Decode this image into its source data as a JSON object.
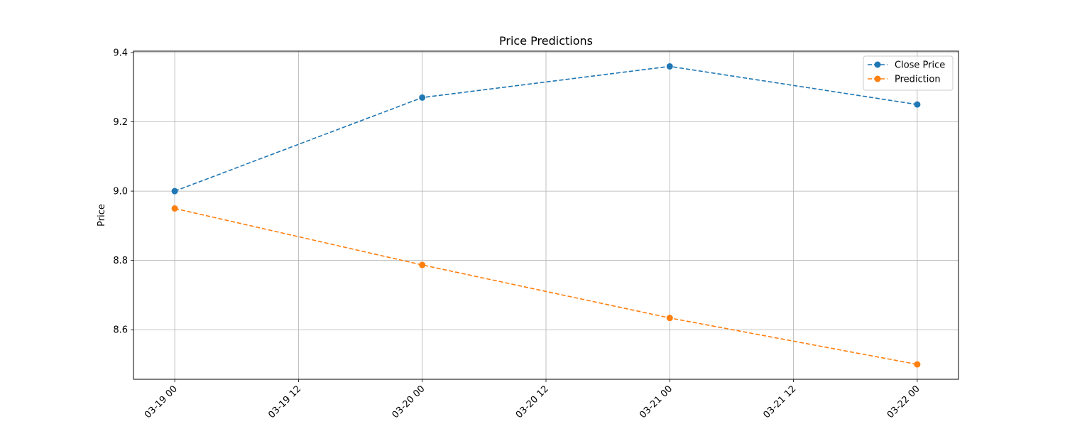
{
  "chart_data": {
    "type": "line",
    "title": "Price Predictions",
    "xlabel": "",
    "ylabel": "Price",
    "x": [
      "03-19 00",
      "03-20 00",
      "03-21 00",
      "03-22 00"
    ],
    "x_ticks": [
      "03-19 00",
      "03-19 12",
      "03-20 00",
      "03-20 12",
      "03-21 00",
      "03-21 12",
      "03-22 00"
    ],
    "y_ticks": [
      8.6,
      8.8,
      9.0,
      9.2,
      9.4
    ],
    "xlim": [
      "03-18 20",
      "03-22 04"
    ],
    "ylim": [
      8.457,
      9.404
    ],
    "grid": true,
    "legend_position": "top-right",
    "series": [
      {
        "name": "Close Price",
        "color": "#1f77b4",
        "line_style": "dashed",
        "marker": "circle",
        "values": [
          9.0,
          9.27,
          9.36,
          9.25
        ]
      },
      {
        "name": "Prediction",
        "color": "#ff7f0e",
        "line_style": "dashed",
        "marker": "circle",
        "values": [
          8.95,
          8.787,
          8.634,
          8.5
        ]
      }
    ]
  }
}
